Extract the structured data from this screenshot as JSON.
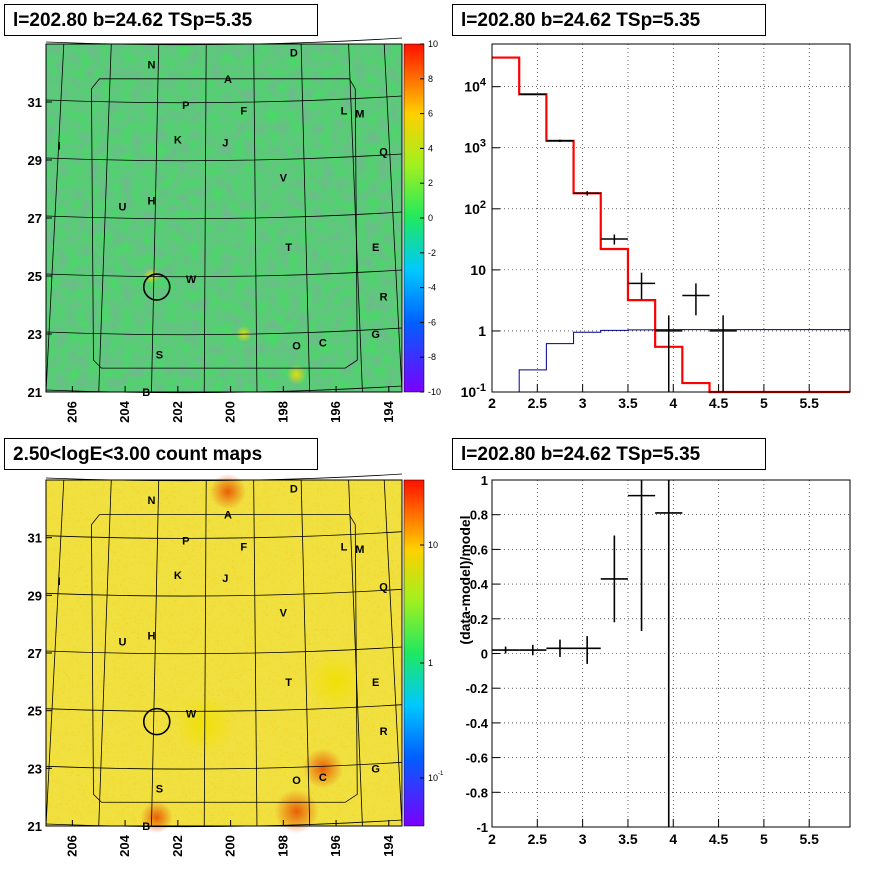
{
  "panels": {
    "tl_title": "l=202.80 b=24.62 TSp=5.35",
    "tr_title": "l=202.80 b=24.62 TSp=5.35",
    "bl_title": "2.50<logE<3.00 count maps",
    "br_title": "l=202.80 b=24.62 TSp=5.35"
  },
  "colors": {
    "data": "#000000",
    "model": "#ff0000",
    "background": "#00008b"
  },
  "chart_data": [
    {
      "type": "heatmap",
      "title": "l=202.80 b=24.62 TSp=5.35",
      "x_ticks": [
        "206",
        "204",
        "202",
        "200",
        "198",
        "196",
        "194"
      ],
      "y_ticks": [
        "21",
        "23",
        "25",
        "27",
        "29",
        "31"
      ],
      "xlim": [
        207,
        193.5
      ],
      "ylim": [
        21,
        33
      ],
      "colorbar": {
        "ticks": [
          "10",
          "8",
          "6",
          "4",
          "2",
          "0",
          "-2",
          "-4",
          "-6",
          "-8",
          "-10"
        ],
        "range": [
          -10,
          10
        ]
      },
      "source_labels": [
        "N",
        "A",
        "D",
        "P",
        "F",
        "L",
        "M",
        "K",
        "J",
        "I",
        "Q",
        "V",
        "U",
        "H",
        "T",
        "E",
        "W",
        "R",
        "G",
        "Q",
        "O",
        "C",
        "S",
        "B"
      ],
      "marker": {
        "l": 202.8,
        "b": 24.62
      }
    },
    {
      "type": "line",
      "title": "l=202.80 b=24.62 TSp=5.35",
      "xlim": [
        2,
        5.95
      ],
      "ylim": [
        0.1,
        50000
      ],
      "yscale": "log",
      "x_ticks": [
        "2",
        "2.5",
        "3",
        "3.5",
        "4",
        "4.5",
        "5",
        "5.5"
      ],
      "y_ticks": [
        "10^-1",
        "1",
        "10",
        "10^2",
        "10^3",
        "10^4"
      ],
      "series": [
        {
          "edges": [
            2.0,
            2.3,
            2.6,
            2.9,
            3.2,
            3.5,
            3.8,
            4.1,
            4.4,
            4.7,
            5.0,
            5.3,
            5.6,
            5.95
          ],
          "values": [
            30000,
            7500,
            1300,
            180,
            22,
            3.2,
            0.55,
            0.14,
            0.1,
            0.1,
            0.1,
            0.1,
            0.1
          ],
          "color": "#ff0000"
        },
        {
          "edges": [
            2.0,
            2.3,
            2.6,
            2.9,
            3.2,
            3.5,
            3.8,
            4.1,
            4.4,
            4.7,
            5.0,
            5.3,
            5.6,
            5.95
          ],
          "values": [
            0.07,
            0.23,
            0.62,
            0.95,
            1.02,
            1.04,
            1.05,
            1.05,
            1.05,
            1.05,
            1.05,
            1.05,
            1.05
          ],
          "color": "#00008b"
        }
      ],
      "points": [
        {
          "x": 2.45,
          "y": 7500,
          "xerr": 0.15,
          "ylo": 7300,
          "yhi": 7700
        },
        {
          "x": 2.75,
          "y": 1300,
          "xerr": 0.15,
          "ylo": 1240,
          "yhi": 1360
        },
        {
          "x": 3.05,
          "y": 180,
          "xerr": 0.15,
          "ylo": 165,
          "yhi": 195
        },
        {
          "x": 3.35,
          "y": 32,
          "xerr": 0.15,
          "ylo": 26,
          "yhi": 38
        },
        {
          "x": 3.65,
          "y": 6,
          "xerr": 0.15,
          "ylo": 3.3,
          "yhi": 9
        },
        {
          "x": 3.95,
          "y": 1,
          "xerr": 0.15,
          "ylo": 0.1,
          "yhi": 1.8
        },
        {
          "x": 4.25,
          "y": 3.8,
          "xerr": 0.15,
          "ylo": 1.8,
          "yhi": 6
        },
        {
          "x": 4.55,
          "y": 1,
          "xerr": 0.15,
          "ylo": 0.1,
          "yhi": 1.8
        }
      ]
    },
    {
      "type": "heatmap",
      "title": "2.50<logE<3.00 count maps",
      "x_ticks": [
        "206",
        "204",
        "202",
        "200",
        "198",
        "196",
        "194"
      ],
      "y_ticks": [
        "21",
        "23",
        "25",
        "27",
        "29",
        "31"
      ],
      "xlim": [
        207,
        193.5
      ],
      "ylim": [
        21,
        33
      ],
      "colorbar": {
        "ticks": [
          "10",
          "1",
          "10^-1"
        ],
        "scale": "log"
      },
      "source_labels": [
        "N",
        "A",
        "D",
        "P",
        "F",
        "L",
        "M",
        "K",
        "J",
        "I",
        "Q",
        "V",
        "U",
        "H",
        "T",
        "E",
        "W",
        "R",
        "G",
        "Q",
        "O",
        "C",
        "S",
        "B"
      ],
      "marker": {
        "l": 202.8,
        "b": 24.62
      }
    },
    {
      "type": "scatter",
      "title": "l=202.80 b=24.62 TSp=5.35",
      "ylabel": "(data-model)/model",
      "xlim": [
        2,
        5.95
      ],
      "ylim": [
        -1,
        1
      ],
      "x_ticks": [
        "2",
        "2.5",
        "3",
        "3.5",
        "4",
        "4.5",
        "5",
        "5.5"
      ],
      "y_ticks": [
        "1",
        "0.8",
        "0.6",
        "0.4",
        "0.2",
        "0",
        "-0.2",
        "-0.4",
        "-0.6",
        "-0.8",
        "-1"
      ],
      "points": [
        {
          "x": 2.15,
          "y": 0.02,
          "xerr": 0.15,
          "ylo": 0.0,
          "yhi": 0.04
        },
        {
          "x": 2.45,
          "y": 0.02,
          "xerr": 0.15,
          "ylo": -0.01,
          "yhi": 0.05
        },
        {
          "x": 2.75,
          "y": 0.03,
          "xerr": 0.15,
          "ylo": -0.02,
          "yhi": 0.08
        },
        {
          "x": 3.05,
          "y": 0.03,
          "xerr": 0.15,
          "ylo": -0.06,
          "yhi": 0.1
        },
        {
          "x": 3.35,
          "y": 0.43,
          "xerr": 0.15,
          "ylo": 0.18,
          "yhi": 0.68
        },
        {
          "x": 3.65,
          "y": 0.91,
          "xerr": 0.15,
          "ylo": 0.13,
          "yhi": 1.0
        },
        {
          "x": 3.95,
          "y": 0.81,
          "xerr": 0.15,
          "ylo": -1.0,
          "yhi": 1.0
        }
      ]
    }
  ]
}
